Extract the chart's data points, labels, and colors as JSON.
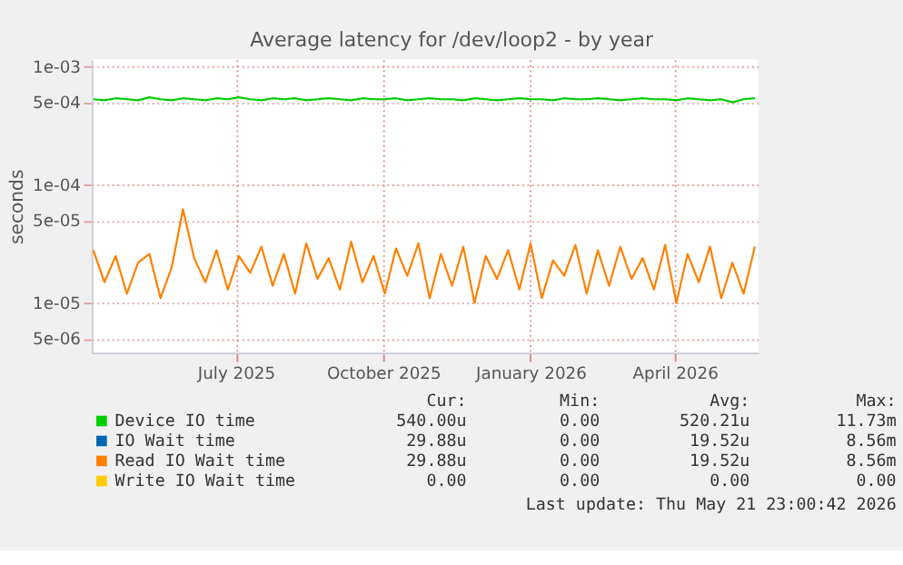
{
  "chart_data": {
    "type": "line",
    "title": "Average latency for /dev/loop2 - by year",
    "ylabel": "seconds",
    "log": "y",
    "grid": true,
    "legend": "bottom",
    "xlim": [
      "2025-04-02",
      "2026-05-23"
    ],
    "xticks": [
      {
        "value": "2025-07-01",
        "label": "July 2025"
      },
      {
        "value": "2025-10-01",
        "label": "October 2025"
      },
      {
        "value": "2026-01-01",
        "label": "January 2026"
      },
      {
        "value": "2026-04-01",
        "label": "April 2026"
      }
    ],
    "ylim": [
      3.8e-06,
      0.00115
    ],
    "yticks": [
      {
        "value": 5e-06,
        "label": "5e-06"
      },
      {
        "value": 1e-05,
        "label": "1e-05"
      },
      {
        "value": 5e-05,
        "label": "5e-05"
      },
      {
        "value": 0.0001,
        "label": "1e-04"
      },
      {
        "value": 0.0005,
        "label": "5e-04"
      },
      {
        "value": 0.001,
        "label": "1e-03"
      }
    ],
    "x": [
      "2025-04-03",
      "2025-04-10",
      "2025-04-17",
      "2025-04-24",
      "2025-05-01",
      "2025-05-08",
      "2025-05-15",
      "2025-05-22",
      "2025-05-29",
      "2025-06-05",
      "2025-06-12",
      "2025-06-19",
      "2025-06-26",
      "2025-07-03",
      "2025-07-10",
      "2025-07-17",
      "2025-07-24",
      "2025-07-31",
      "2025-08-07",
      "2025-08-14",
      "2025-08-21",
      "2025-08-28",
      "2025-09-04",
      "2025-09-11",
      "2025-09-18",
      "2025-09-25",
      "2025-10-02",
      "2025-10-09",
      "2025-10-16",
      "2025-10-23",
      "2025-10-30",
      "2025-11-06",
      "2025-11-13",
      "2025-11-20",
      "2025-11-27",
      "2025-12-04",
      "2025-12-11",
      "2025-12-18",
      "2025-12-25",
      "2026-01-01",
      "2026-01-08",
      "2026-01-15",
      "2026-01-22",
      "2026-01-29",
      "2026-02-05",
      "2026-02-12",
      "2026-02-19",
      "2026-02-26",
      "2026-03-05",
      "2026-03-12",
      "2026-03-19",
      "2026-03-26",
      "2026-04-02",
      "2026-04-09",
      "2026-04-16",
      "2026-04-23",
      "2026-04-30",
      "2026-05-07",
      "2026-05-14",
      "2026-05-21"
    ],
    "series": [
      {
        "name": "Device IO time",
        "color": "#00cc00",
        "values": [
          0.00053,
          0.00052,
          0.00054,
          0.00053,
          0.00052,
          0.00055,
          0.00053,
          0.00052,
          0.00054,
          0.00053,
          0.00052,
          0.00054,
          0.00053,
          0.00055,
          0.00053,
          0.00052,
          0.00054,
          0.00053,
          0.00054,
          0.00052,
          0.00053,
          0.00054,
          0.00053,
          0.00052,
          0.00054,
          0.00053,
          0.00053,
          0.00054,
          0.00052,
          0.00053,
          0.00054,
          0.00053,
          0.00053,
          0.00052,
          0.00054,
          0.00053,
          0.00052,
          0.00053,
          0.00054,
          0.00053,
          0.00053,
          0.00052,
          0.00054,
          0.00053,
          0.00053,
          0.00054,
          0.00053,
          0.00052,
          0.00053,
          0.00054,
          0.00053,
          0.00053,
          0.00052,
          0.00054,
          0.00053,
          0.00052,
          0.00053,
          0.0005,
          0.00053,
          0.00054
        ]
      },
      {
        "name": "IO Wait time",
        "color": "#0066b3",
        "values": [
          null,
          null,
          null,
          null,
          null,
          null,
          null,
          null,
          null,
          null,
          null,
          null,
          null,
          null,
          null,
          null,
          null,
          null,
          null,
          null,
          null,
          null,
          null,
          null,
          null,
          null,
          null,
          null,
          null,
          null,
          null,
          null,
          null,
          null,
          null,
          null,
          null,
          null,
          null,
          null,
          null,
          null,
          null,
          null,
          null,
          null,
          null,
          null,
          null,
          null,
          null,
          null,
          null,
          null,
          null,
          null,
          null,
          null,
          null,
          null
        ]
      },
      {
        "name": "Read IO Wait time",
        "color": "#ff8000",
        "values": [
          2.8e-05,
          1.5e-05,
          2.5e-05,
          1.2e-05,
          2.2e-05,
          2.6e-05,
          1.1e-05,
          2e-05,
          6.2e-05,
          2.4e-05,
          1.5e-05,
          2.8e-05,
          1.3e-05,
          2.5e-05,
          1.8e-05,
          3e-05,
          1.4e-05,
          2.6e-05,
          1.2e-05,
          3.2e-05,
          1.6e-05,
          2.4e-05,
          1.3e-05,
          3.3e-05,
          1.5e-05,
          2.5e-05,
          1.2e-05,
          2.9e-05,
          1.7e-05,
          3.2e-05,
          1.1e-05,
          2.6e-05,
          1.4e-05,
          3e-05,
          1e-05,
          2.5e-05,
          1.6e-05,
          2.8e-05,
          1.3e-05,
          3.2e-05,
          1.1e-05,
          2.3e-05,
          1.7e-05,
          3.1e-05,
          1.2e-05,
          2.8e-05,
          1.4e-05,
          3e-05,
          1.6e-05,
          2.4e-05,
          1.3e-05,
          3.1e-05,
          1e-05,
          2.6e-05,
          1.5e-05,
          3e-05,
          1.1e-05,
          2.2e-05,
          1.2e-05,
          3e-05
        ]
      },
      {
        "name": "Write IO Wait time",
        "color": "#ffcc00",
        "values": [
          null,
          null,
          null,
          null,
          null,
          null,
          null,
          null,
          null,
          null,
          null,
          null,
          null,
          null,
          null,
          null,
          null,
          null,
          null,
          null,
          null,
          null,
          null,
          null,
          null,
          null,
          null,
          null,
          null,
          null,
          null,
          null,
          null,
          null,
          null,
          null,
          null,
          null,
          null,
          null,
          null,
          null,
          null,
          null,
          null,
          null,
          null,
          null,
          null,
          null,
          null,
          null,
          null,
          null,
          null,
          null,
          null,
          null,
          null,
          null
        ]
      }
    ],
    "annotations": [
      "Cur:",
      "Min:",
      "Avg:",
      "Max:",
      "540.00u",
      "0.00",
      "520.21u",
      "11.73m",
      "29.88u",
      "0.00",
      "19.52u",
      "8.56m",
      "29.88u",
      "0.00",
      "19.52u",
      "8.56m",
      "0.00",
      "0.00",
      "0.00",
      "0.00",
      "Last update: Thu May 21 23:00:42 2026"
    ]
  }
}
